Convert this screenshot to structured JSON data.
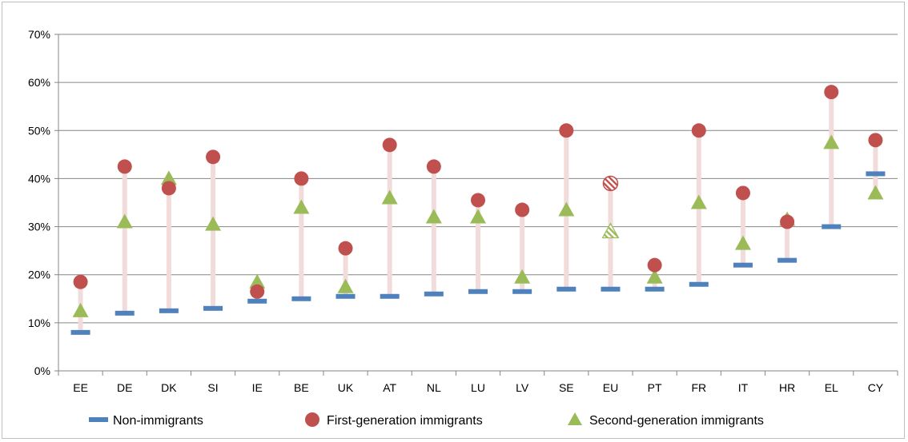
{
  "chart_data": {
    "type": "scatter",
    "title": "",
    "xlabel": "",
    "ylabel": "",
    "ylim": [
      0,
      70
    ],
    "yticks": [
      0,
      10,
      20,
      30,
      40,
      50,
      60,
      70
    ],
    "ytick_labels": [
      "0%",
      "10%",
      "20%",
      "30%",
      "40%",
      "50%",
      "60%",
      "70%"
    ],
    "grid": true,
    "legend_position": "bottom",
    "categories": [
      "EE",
      "DE",
      "DK",
      "SI",
      "IE",
      "BE",
      "UK",
      "AT",
      "NL",
      "LU",
      "LV",
      "SE",
      "EU",
      "PT",
      "FR",
      "IT",
      "HR",
      "EL",
      "CY"
    ],
    "series": [
      {
        "name": "Non-immigrants",
        "marker": "dash",
        "color": "#4f81bd",
        "values": [
          8,
          12,
          12.5,
          13,
          14.5,
          15,
          15.5,
          15.5,
          16,
          16.5,
          16.5,
          17,
          17,
          17,
          18,
          22,
          23,
          30,
          41
        ]
      },
      {
        "name": "First-generation immigrants",
        "marker": "circle",
        "color": "#c0504d",
        "values": [
          18.5,
          42.5,
          38,
          44.5,
          16.5,
          40,
          25.5,
          47,
          42.5,
          35.5,
          33.5,
          50,
          39,
          22,
          50,
          37,
          31,
          58,
          48
        ]
      },
      {
        "name": "Second-generation immigrants",
        "marker": "triangle",
        "color": "#9bbb59",
        "values": [
          12.5,
          31,
          40,
          30.5,
          18.5,
          34,
          17.5,
          36,
          32,
          32,
          19.5,
          33.5,
          29,
          19.5,
          35,
          26.5,
          31.5,
          47.5,
          37
        ]
      }
    ],
    "hatched_category": "EU",
    "range_bar_color": "#f2dcdb"
  }
}
